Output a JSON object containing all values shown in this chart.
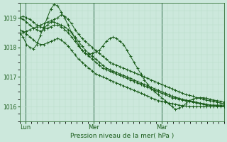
{
  "bg_color": "#cce8dc",
  "grid_color_major_x": "#5a9070",
  "grid_color_minor": "#b0d8c8",
  "line_color": "#1a5c1a",
  "xlabel": "Pression niveau de la mer( hPa )",
  "ylim": [
    1015.5,
    1019.5
  ],
  "yticks": [
    1016,
    1017,
    1018,
    1019
  ],
  "xlim": [
    0,
    144
  ],
  "day_labels": [
    "Lun",
    "Mer",
    "Mar"
  ],
  "day_positions": [
    4,
    52,
    100
  ],
  "series": [
    [
      1019.0,
      1019.05,
      1019.0,
      1018.95,
      1018.85,
      1018.75,
      1018.7,
      1018.65,
      1018.75,
      1018.85,
      1018.95,
      1019.0,
      1019.1,
      1019.05,
      1018.95,
      1018.8,
      1018.6,
      1018.45,
      1018.3,
      1018.2,
      1018.1,
      1018.0,
      1017.9,
      1017.8,
      1017.7,
      1017.6,
      1017.5,
      1017.45,
      1017.4,
      1017.35,
      1017.3,
      1017.25,
      1017.2,
      1017.15,
      1017.1,
      1017.05,
      1017.0,
      1016.95,
      1016.9,
      1016.85,
      1016.8,
      1016.75,
      1016.7,
      1016.65,
      1016.6,
      1016.55,
      1016.5,
      1016.45,
      1016.4,
      1016.38,
      1016.35,
      1016.3,
      1016.28,
      1016.25,
      1016.22,
      1016.2,
      1016.18,
      1016.15,
      1016.12,
      1016.1
    ],
    [
      1018.45,
      1018.5,
      1018.55,
      1018.6,
      1018.65,
      1018.7,
      1018.75,
      1018.8,
      1018.85,
      1018.9,
      1018.85,
      1018.8,
      1018.75,
      1018.7,
      1018.6,
      1018.5,
      1018.35,
      1018.2,
      1018.05,
      1017.9,
      1017.8,
      1017.7,
      1017.6,
      1017.5,
      1017.4,
      1017.3,
      1017.25,
      1017.2,
      1017.15,
      1017.1,
      1017.05,
      1017.0,
      1016.95,
      1016.9,
      1016.85,
      1016.8,
      1016.75,
      1016.7,
      1016.65,
      1016.6,
      1016.55,
      1016.5,
      1016.45,
      1016.4,
      1016.35,
      1016.32,
      1016.28,
      1016.25,
      1016.22,
      1016.2,
      1016.18,
      1016.15,
      1016.12,
      1016.1,
      1016.08,
      1016.05,
      1016.05,
      1016.05,
      1016.05,
      1016.05
    ],
    [
      1018.5,
      1018.35,
      1018.1,
      1018.0,
      1017.95,
      1018.1,
      1018.4,
      1018.7,
      1019.0,
      1019.3,
      1019.45,
      1019.4,
      1019.2,
      1019.0,
      1018.75,
      1018.5,
      1018.3,
      1018.1,
      1017.9,
      1017.8,
      1017.75,
      1017.8,
      1017.85,
      1017.9,
      1018.05,
      1018.2,
      1018.3,
      1018.35,
      1018.3,
      1018.2,
      1018.1,
      1017.9,
      1017.7,
      1017.5,
      1017.3,
      1017.1,
      1016.9,
      1016.75,
      1016.6,
      1016.5,
      1016.4,
      1016.3,
      1016.2,
      1016.1,
      1016.0,
      1015.9,
      1015.95,
      1016.0,
      1016.1,
      1016.2,
      1016.25,
      1016.3,
      1016.3,
      1016.3,
      1016.28,
      1016.25,
      1016.22,
      1016.2,
      1016.18,
      1016.15
    ],
    [
      1019.0,
      1018.95,
      1018.85,
      1018.75,
      1018.65,
      1018.6,
      1018.55,
      1018.6,
      1018.65,
      1018.7,
      1018.75,
      1018.75,
      1018.7,
      1018.6,
      1018.5,
      1018.35,
      1018.2,
      1018.05,
      1017.9,
      1017.8,
      1017.7,
      1017.6,
      1017.5,
      1017.4,
      1017.3,
      1017.25,
      1017.2,
      1017.15,
      1017.1,
      1017.05,
      1017.0,
      1016.95,
      1016.9,
      1016.85,
      1016.8,
      1016.75,
      1016.7,
      1016.65,
      1016.6,
      1016.55,
      1016.5,
      1016.45,
      1016.4,
      1016.35,
      1016.3,
      1016.28,
      1016.25,
      1016.22,
      1016.2,
      1016.18,
      1016.15,
      1016.12,
      1016.1,
      1016.08,
      1016.06,
      1016.05,
      1016.04,
      1016.03,
      1016.02,
      1016.0
    ],
    [
      1018.6,
      1018.55,
      1018.45,
      1018.35,
      1018.25,
      1018.15,
      1018.1,
      1018.1,
      1018.15,
      1018.2,
      1018.25,
      1018.3,
      1018.25,
      1018.15,
      1018.05,
      1017.9,
      1017.75,
      1017.6,
      1017.5,
      1017.4,
      1017.3,
      1017.2,
      1017.1,
      1017.05,
      1017.0,
      1016.95,
      1016.9,
      1016.85,
      1016.8,
      1016.75,
      1016.7,
      1016.65,
      1016.6,
      1016.55,
      1016.5,
      1016.45,
      1016.4,
      1016.35,
      1016.3,
      1016.25,
      1016.2,
      1016.18,
      1016.15,
      1016.12,
      1016.1,
      1016.08,
      1016.05,
      1016.03,
      1016.02,
      1016.0,
      1016.0,
      1016.0,
      1016.0,
      1016.0,
      1016.0,
      1016.0,
      1016.0,
      1016.0,
      1016.0,
      1016.0
    ]
  ]
}
